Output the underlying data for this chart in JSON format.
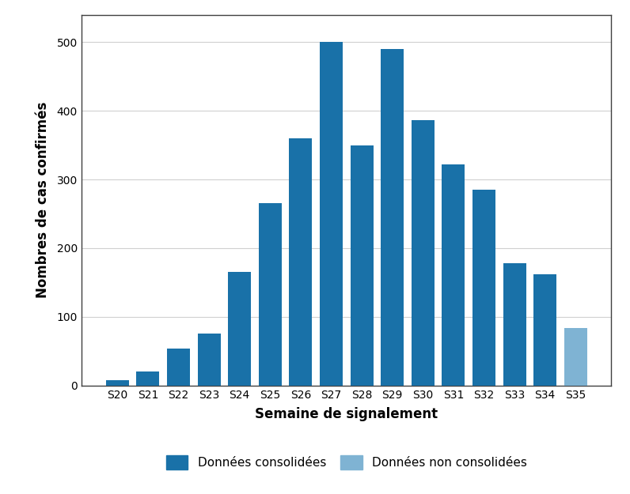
{
  "categories": [
    "S20",
    "S21",
    "S22",
    "S23",
    "S24",
    "S25",
    "S26",
    "S27",
    "S28",
    "S29",
    "S30",
    "S31",
    "S32",
    "S33",
    "S34",
    "S35"
  ],
  "values": [
    7,
    20,
    53,
    76,
    165,
    265,
    360,
    500,
    350,
    490,
    386,
    322,
    285,
    178,
    162,
    84
  ],
  "bar_colors": [
    "#1971a8",
    "#1971a8",
    "#1971a8",
    "#1971a8",
    "#1971a8",
    "#1971a8",
    "#1971a8",
    "#1971a8",
    "#1971a8",
    "#1971a8",
    "#1971a8",
    "#1971a8",
    "#1971a8",
    "#1971a8",
    "#1971a8",
    "#7fb3d3"
  ],
  "consolidated_color": "#1971a8",
  "non_consolidated_color": "#7fb3d3",
  "xlabel": "Semaine de signalement",
  "ylabel": "Nombres de cas confirmés",
  "ylim": [
    0,
    540
  ],
  "yticks": [
    0,
    100,
    200,
    300,
    400,
    500
  ],
  "legend_consolidated": "Données consolidées",
  "legend_non_consolidated": "Données non consolidées",
  "background_color": "#ffffff",
  "grid_color": "#d0d0d0",
  "bar_width": 0.75,
  "spine_color": "#404040",
  "tick_label_fontsize": 10,
  "axis_label_fontsize": 12,
  "legend_fontsize": 11
}
